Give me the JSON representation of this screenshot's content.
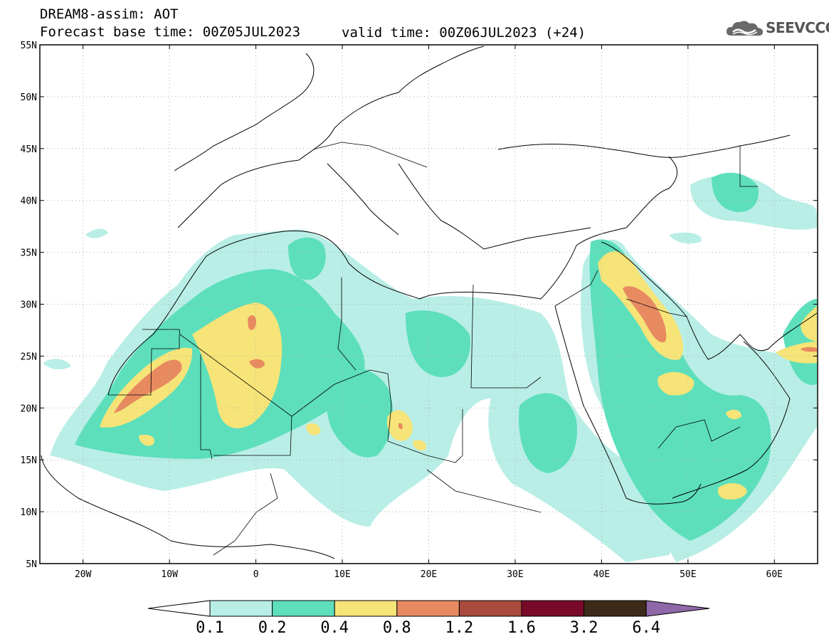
{
  "header": {
    "line1": "DREAM8-assim: AOT",
    "line2": "Forecast base time: 00Z05JUL2023",
    "valid": "valid time: 00Z06JUL2023 (+24)"
  },
  "logo": {
    "text": "SEEVCCC",
    "icon": "cloud-icon"
  },
  "map": {
    "lon_range": [
      -25,
      65
    ],
    "lat_range": [
      5,
      55
    ],
    "lon_ticks": [
      {
        "value": -20,
        "label": "20W"
      },
      {
        "value": -10,
        "label": "10W"
      },
      {
        "value": 0,
        "label": "0"
      },
      {
        "value": 10,
        "label": "10E"
      },
      {
        "value": 20,
        "label": "20E"
      },
      {
        "value": 30,
        "label": "30E"
      },
      {
        "value": 40,
        "label": "40E"
      },
      {
        "value": 50,
        "label": "50E"
      },
      {
        "value": 60,
        "label": "60E"
      }
    ],
    "lat_ticks": [
      {
        "value": 55,
        "label": "55N"
      },
      {
        "value": 50,
        "label": "50N"
      },
      {
        "value": 45,
        "label": "45N"
      },
      {
        "value": 40,
        "label": "40N"
      },
      {
        "value": 35,
        "label": "35N"
      },
      {
        "value": 30,
        "label": "30N"
      },
      {
        "value": 25,
        "label": "25N"
      },
      {
        "value": 20,
        "label": "20N"
      },
      {
        "value": 15,
        "label": "15N"
      },
      {
        "value": 10,
        "label": "10N"
      },
      {
        "value": 5,
        "label": "5N"
      }
    ]
  },
  "colorbar": {
    "levels": [
      "0.1",
      "0.2",
      "0.4",
      "0.8",
      "1.2",
      "1.6",
      "3.2",
      "6.4"
    ],
    "colors": [
      "#b9eee6",
      "#5ddfbc",
      "#f6e478",
      "#e88a60",
      "#a84a3c",
      "#7a0a2a",
      "#3d2a18"
    ],
    "under_color": "#ffffff",
    "over_color": "#8e68a8"
  }
}
